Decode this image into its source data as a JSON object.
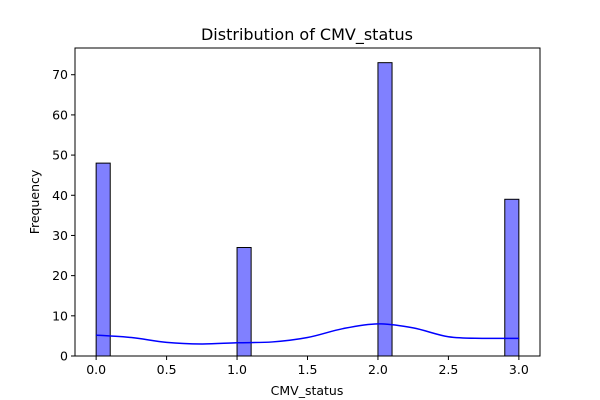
{
  "chart_data": {
    "type": "bar",
    "title": "Distribution of CMV_status",
    "xlabel": "CMV_status",
    "ylabel": "Frequency",
    "xlim": [
      -0.15,
      3.15
    ],
    "ylim": [
      0,
      76.65
    ],
    "x_ticks": [
      0.0,
      0.5,
      1.0,
      1.5,
      2.0,
      2.5,
      3.0
    ],
    "x_tick_labels": [
      "0.0",
      "0.5",
      "1.0",
      "1.5",
      "2.0",
      "2.5",
      "3.0"
    ],
    "y_ticks": [
      0,
      10,
      20,
      30,
      40,
      50,
      60,
      70
    ],
    "y_tick_labels": [
      "0",
      "10",
      "20",
      "30",
      "40",
      "50",
      "60",
      "70"
    ],
    "bins": [
      {
        "x0": 0.0,
        "x1": 0.1,
        "count": 48
      },
      {
        "x0": 1.0,
        "x1": 1.1,
        "count": 27
      },
      {
        "x0": 2.0,
        "x1": 2.1,
        "count": 73
      },
      {
        "x0": 2.9,
        "x1": 3.0,
        "count": 39
      }
    ],
    "kde": {
      "x": [
        0.0,
        0.25,
        0.5,
        0.75,
        1.0,
        1.25,
        1.5,
        1.75,
        2.0,
        2.25,
        2.5,
        2.75,
        3.0
      ],
      "y": [
        5.2,
        4.6,
        3.4,
        3.0,
        3.3,
        3.5,
        4.6,
        6.8,
        8.0,
        7.0,
        4.8,
        4.4,
        4.4
      ]
    },
    "grid": false,
    "bar_color": "#8080ff",
    "bar_edge_color": "#000000",
    "kde_color": "#0000ff"
  }
}
